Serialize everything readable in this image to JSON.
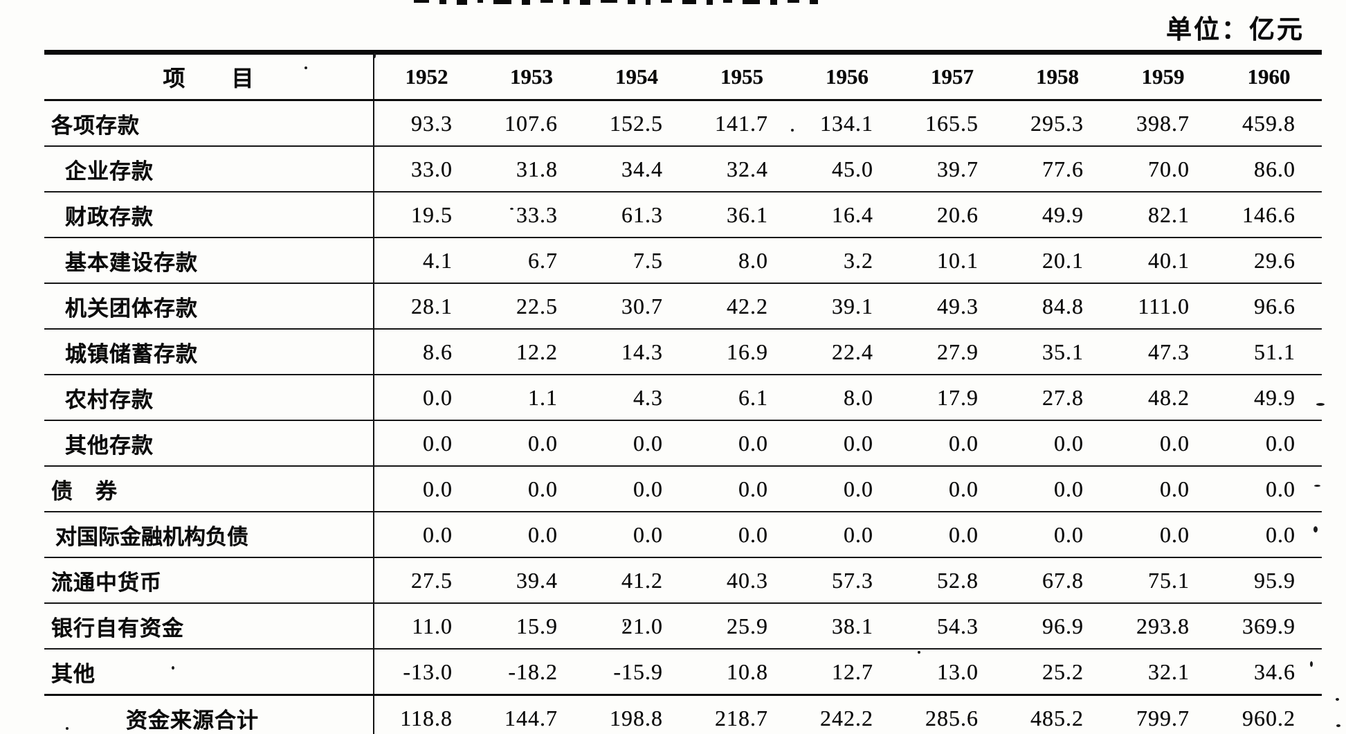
{
  "colors": {
    "paper": "#fdfdfb",
    "ink": "#0b0b0b"
  },
  "page": {
    "unit_label": "单位：亿元"
  },
  "table": {
    "header": {
      "item_label": "项　　目",
      "years": [
        "1952",
        "1953",
        "1954",
        "1955",
        "1956",
        "1957",
        "1958",
        "1959",
        "1960"
      ]
    },
    "rows": [
      {
        "label": "各项存款",
        "indent": 0,
        "values": [
          "93.3",
          "107.6",
          "152.5",
          "141.7",
          "134.1",
          "165.5",
          "295.3",
          "398.7",
          "459.8"
        ]
      },
      {
        "label": "企业存款",
        "indent": 1,
        "values": [
          "33.0",
          "31.8",
          "34.4",
          "32.4",
          "45.0",
          "39.7",
          "77.6",
          "70.0",
          "86.0"
        ]
      },
      {
        "label": "财政存款",
        "indent": 1,
        "values": [
          "19.5",
          "33.3",
          "61.3",
          "36.1",
          "16.4",
          "20.6",
          "49.9",
          "82.1",
          "146.6"
        ]
      },
      {
        "label": "基本建设存款",
        "indent": 1,
        "values": [
          "4.1",
          "6.7",
          "7.5",
          "8.0",
          "3.2",
          "10.1",
          "20.1",
          "40.1",
          "29.6"
        ]
      },
      {
        "label": "机关团体存款",
        "indent": 1,
        "values": [
          "28.1",
          "22.5",
          "30.7",
          "42.2",
          "39.1",
          "49.3",
          "84.8",
          "111.0",
          "96.6"
        ]
      },
      {
        "label": "城镇储蓄存款",
        "indent": 1,
        "values": [
          "8.6",
          "12.2",
          "14.3",
          "16.9",
          "22.4",
          "27.9",
          "35.1",
          "47.3",
          "51.1"
        ]
      },
      {
        "label": "农村存款",
        "indent": 1,
        "values": [
          "0.0",
          "1.1",
          "4.3",
          "6.1",
          "8.0",
          "17.9",
          "27.8",
          "48.2",
          "49.9"
        ]
      },
      {
        "label": "其他存款",
        "indent": 1,
        "values": [
          "0.0",
          "0.0",
          "0.0",
          "0.0",
          "0.0",
          "0.0",
          "0.0",
          "0.0",
          "0.0"
        ]
      },
      {
        "label": "债　券",
        "indent": 0,
        "values": [
          "0.0",
          "0.0",
          "0.0",
          "0.0",
          "0.0",
          "0.0",
          "0.0",
          "0.0",
          "0.0"
        ]
      },
      {
        "label": "对国际金融机构负债",
        "indent": 2,
        "values": [
          "0.0",
          "0.0",
          "0.0",
          "0.0",
          "0.0",
          "0.0",
          "0.0",
          "0.0",
          "0.0"
        ]
      },
      {
        "label": "流通中货币",
        "indent": 0,
        "values": [
          "27.5",
          "39.4",
          "41.2",
          "40.3",
          "57.3",
          "52.8",
          "67.8",
          "75.1",
          "95.9"
        ]
      },
      {
        "label": "银行自有资金",
        "indent": 0,
        "values": [
          "11.0",
          "15.9",
          "21.0",
          "25.9",
          "38.1",
          "54.3",
          "96.9",
          "293.8",
          "369.9"
        ]
      },
      {
        "label": "其他",
        "indent": 0,
        "values": [
          "-13.0",
          "-18.2",
          "-15.9",
          "10.8",
          "12.7",
          "13.0",
          "25.2",
          "32.1",
          "34.6"
        ]
      },
      {
        "label": "资金来源合计",
        "indent": 3,
        "values": [
          "118.8",
          "144.7",
          "198.8",
          "218.7",
          "242.2",
          "285.6",
          "485.2",
          "799.7",
          "960.2"
        ]
      }
    ]
  }
}
